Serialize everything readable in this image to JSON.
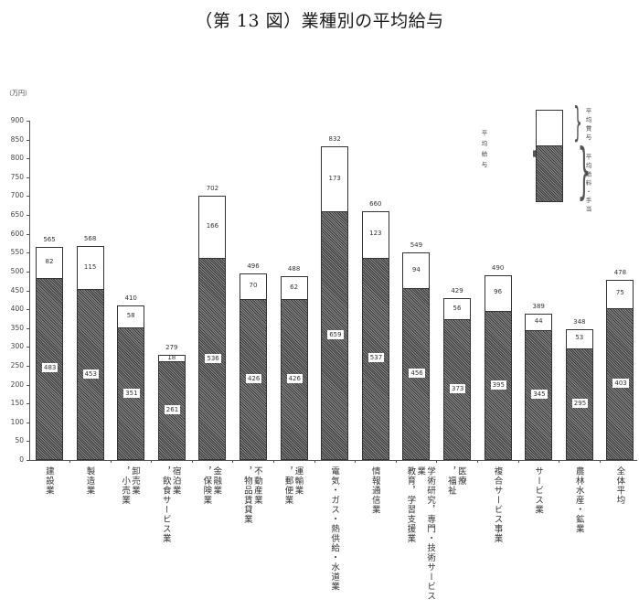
{
  "title": "（第 13 図）業種別の平均給与",
  "chart_data": {
    "type": "bar",
    "stacked": true,
    "title": "（第 13 図）業種別の平均給与",
    "xlabel": "",
    "ylabel": "（万円）",
    "ylim": [
      0,
      900
    ],
    "yticks": [
      0,
      50,
      100,
      150,
      200,
      250,
      300,
      350,
      400,
      450,
      500,
      550,
      600,
      650,
      700,
      750,
      800,
      850,
      900
    ],
    "grid": false,
    "legend_position": "top-right",
    "categories": [
      "建設業",
      "製造業",
      "卸売業，小売業",
      "宿泊業，飲食サービス業",
      "金融業，保険業",
      "不動産業，物品賃貸業",
      "運輸業，郵便業",
      "電気・ガス・熱供給・水道業",
      "情報通信業",
      "学術研究，専門・技術サービス業 教育，学習支援業",
      "医療，福祉",
      "複合サービス事業",
      "サービス業",
      "農林水産・鉱業",
      "全体平均"
    ],
    "series": [
      {
        "name": "平均給料・手当",
        "values": [
          483,
          453,
          351,
          261,
          536,
          426,
          426,
          659,
          537,
          456,
          373,
          395,
          345,
          295,
          403
        ]
      },
      {
        "name": "平均賞与",
        "values": [
          82,
          115,
          58,
          18,
          166,
          70,
          62,
          173,
          123,
          94,
          56,
          96,
          44,
          53,
          75
        ]
      }
    ],
    "totals": {
      "name": "平均給与",
      "values": [
        565,
        568,
        410,
        279,
        702,
        496,
        488,
        832,
        660,
        549,
        429,
        490,
        389,
        348,
        478
      ]
    }
  },
  "axis": {
    "unit": "（万円）"
  },
  "categories_display": [
    {
      "lines": [
        "建設業"
      ]
    },
    {
      "lines": [
        "製造業"
      ]
    },
    {
      "lines": [
        "卸売業",
        "，小売業"
      ]
    },
    {
      "lines": [
        "宿泊業",
        "，飲食サービス業"
      ]
    },
    {
      "lines": [
        "金融業",
        "，保険業"
      ]
    },
    {
      "lines": [
        "不動産業",
        "，物品賃貸業"
      ]
    },
    {
      "lines": [
        "運輸業",
        "，郵便業"
      ]
    },
    {
      "lines": [
        "電気・ガス・熱供給・水道業"
      ]
    },
    {
      "lines": [
        "情報通信業"
      ]
    },
    {
      "lines": [
        "学術研究，専門・技術サービス業",
        "教育，学習支援業"
      ]
    },
    {
      "lines": [
        "医療",
        "，福祉"
      ]
    },
    {
      "lines": [
        "複合サービス事業"
      ]
    },
    {
      "lines": [
        "サービス業"
      ]
    },
    {
      "lines": [
        "農林水産・鉱業"
      ]
    },
    {
      "lines": [
        "全体平均"
      ]
    }
  ],
  "legend": {
    "total_label": "平均給与",
    "bonus_label": "平均賞与",
    "base_label": "平均給料・手当"
  },
  "colors": {
    "bonus_fill": "#ffffff",
    "base_fill": "#5a5a5a",
    "outline": "#333333"
  }
}
